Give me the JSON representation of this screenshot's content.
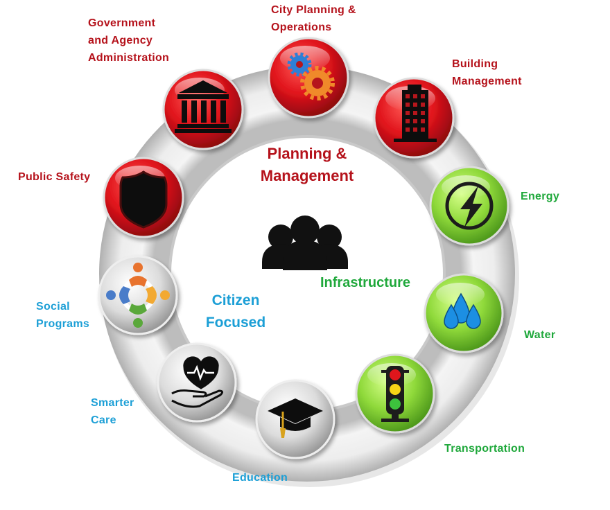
{
  "colors": {
    "planning_red": "#b5121b",
    "infrastructure_green": "#1fa83b",
    "citizen_blue": "#1c9fd6",
    "ring_gray": "#e6e6e6"
  },
  "center": {
    "icon": "people-group-icon",
    "planning_line1": "Planning &",
    "planning_line2": "Management",
    "infrastructure": "Infrastructure",
    "citizen_line1": "Citizen",
    "citizen_line2": "Focused"
  },
  "nodes": {
    "government": {
      "line1": "Government",
      "line2": "and Agency",
      "line3": "Administration",
      "icon": "government-building-icon"
    },
    "city_planning": {
      "line1": "City Planning &",
      "line2": "Operations",
      "icon": "gears-icon"
    },
    "building": {
      "line1": "Building",
      "line2": "Management",
      "icon": "office-building-icon"
    },
    "public_safety": {
      "line1": "Public Safety",
      "icon": "shield-icon"
    },
    "energy": {
      "line1": "Energy",
      "icon": "lightning-icon"
    },
    "water": {
      "line1": "Water",
      "icon": "water-drops-icon"
    },
    "transportation": {
      "line1": "Transportation",
      "icon": "traffic-light-icon"
    },
    "social": {
      "line1": "Social",
      "line2": "Programs",
      "icon": "people-circle-icon"
    },
    "care": {
      "line1": "Smarter",
      "line2": "Care",
      "icon": "heart-hand-icon"
    },
    "education": {
      "line1": "Education",
      "icon": "graduation-cap-icon"
    }
  }
}
